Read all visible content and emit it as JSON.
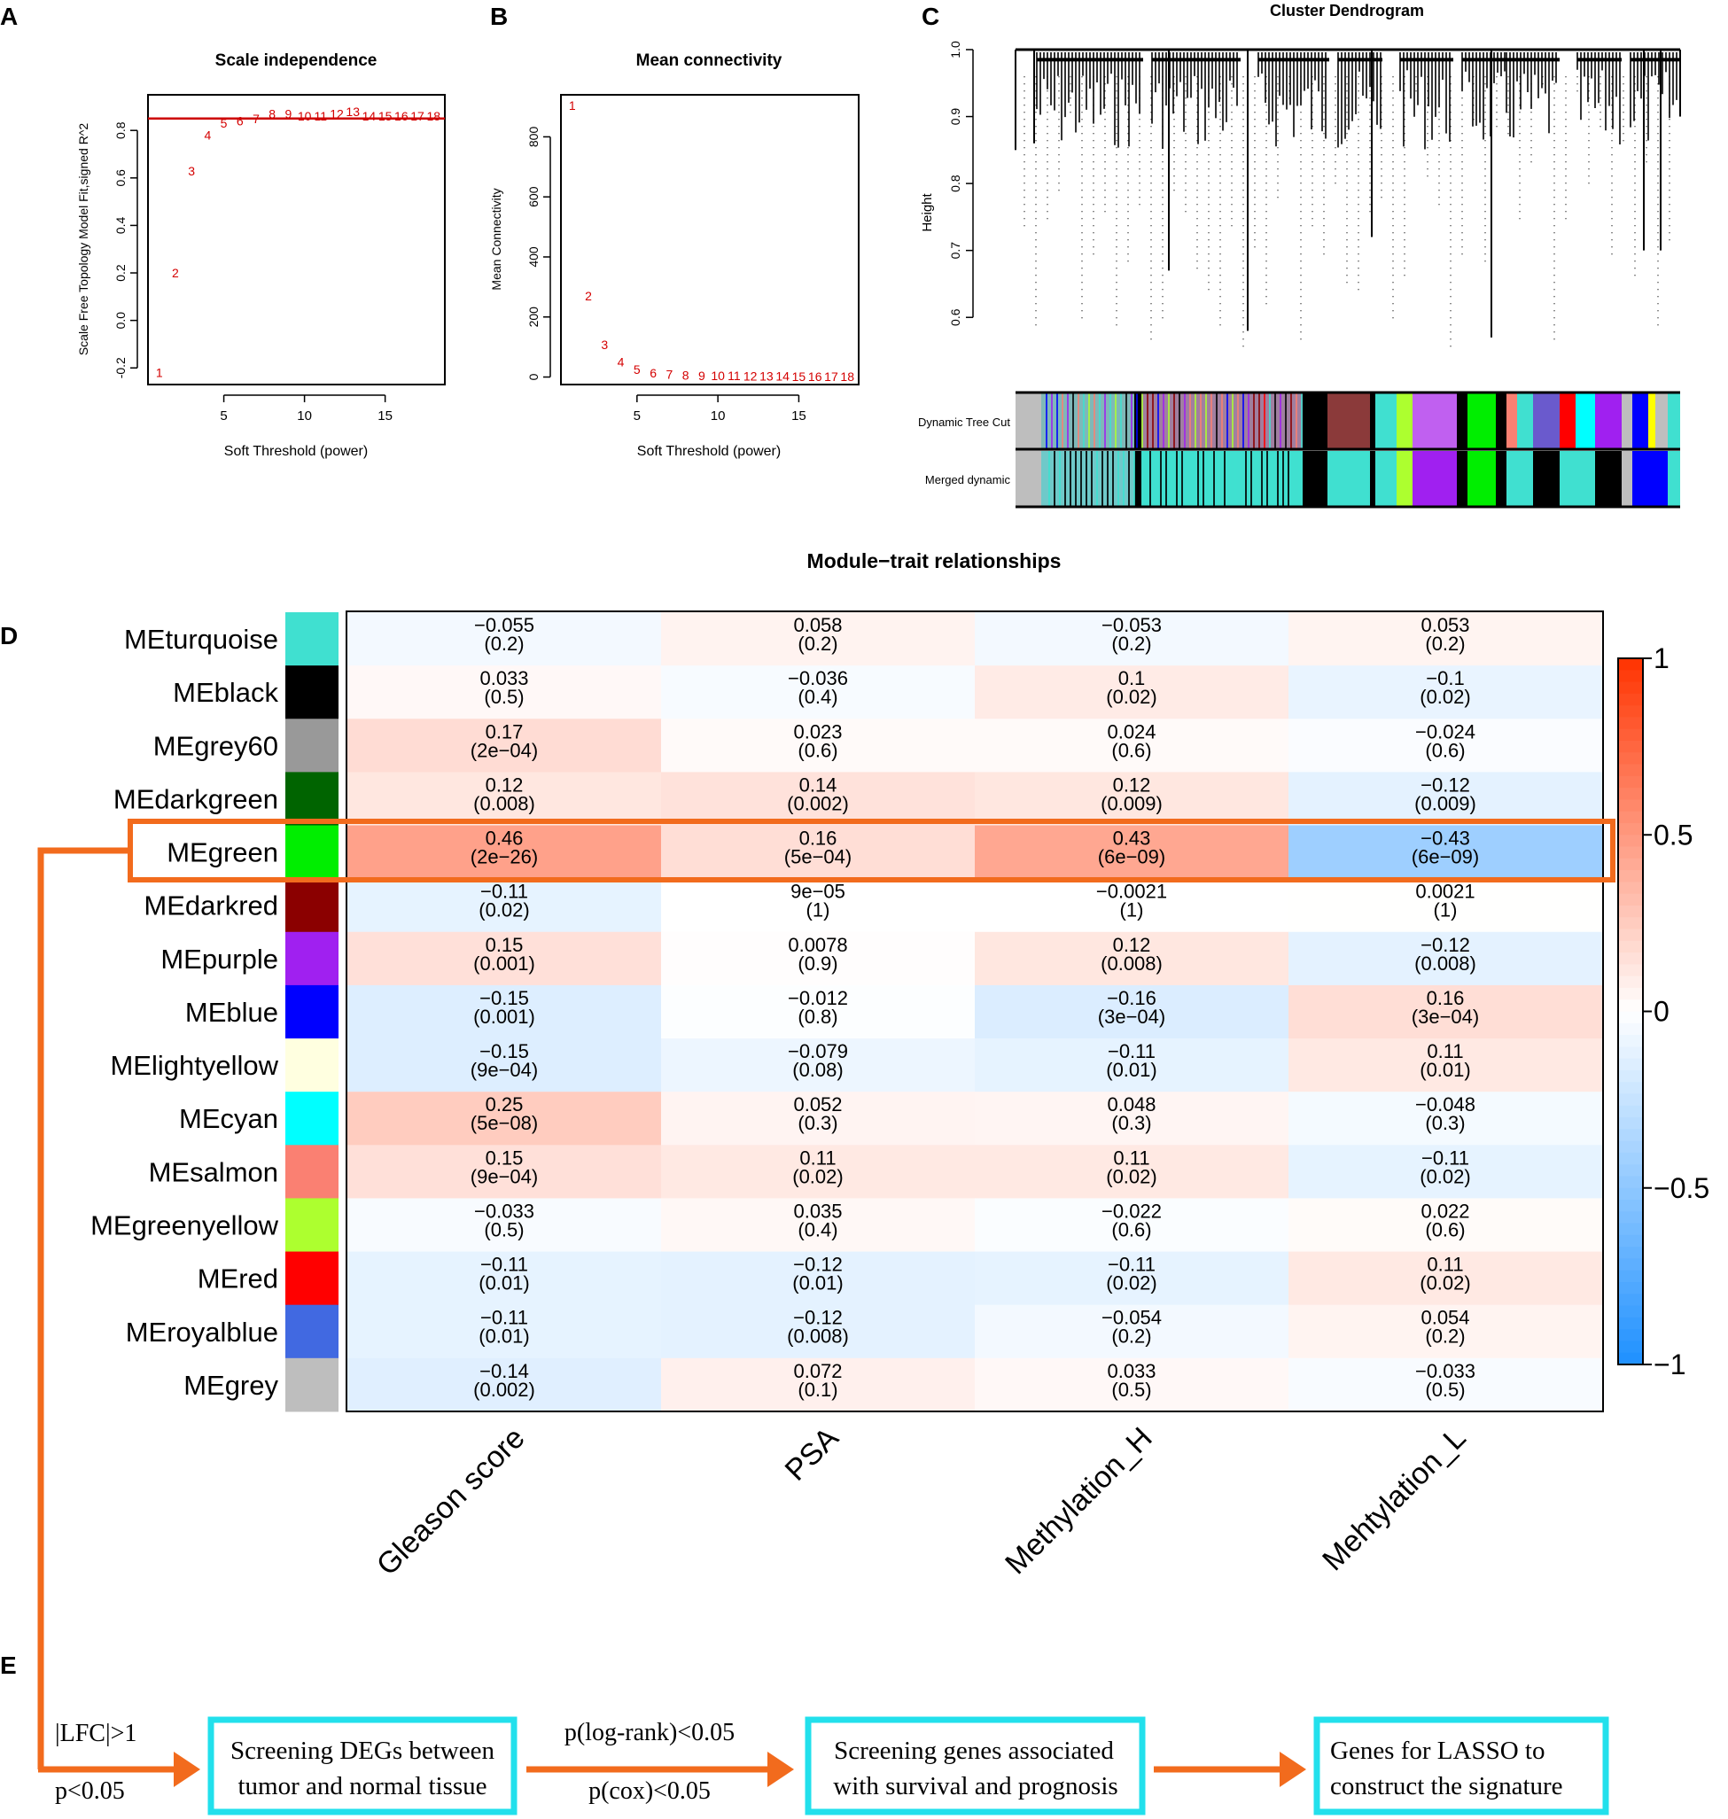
{
  "panels": {
    "a": {
      "letter": "A",
      "title": "Scale independence",
      "xlabel": "Soft Threshold (power)",
      "ylabel": "Scale Free Topology Model Fit,signed R^2",
      "xticks": [
        "5",
        "10",
        "15"
      ],
      "yticks": [
        "-0.2",
        "0.0",
        "0.2",
        "0.4",
        "0.6",
        "0.8"
      ]
    },
    "b": {
      "letter": "B",
      "title": "Mean connectivity",
      "xlabel": "Soft Threshold (power)",
      "ylabel": "Mean Connectivity",
      "xticks": [
        "5",
        "10",
        "15"
      ],
      "yticks": [
        "0",
        "200",
        "400",
        "600",
        "800"
      ]
    },
    "c": {
      "letter": "C",
      "title": "Cluster Dendrogram",
      "ylabel": "Height",
      "yticks": [
        "0.6",
        "0.7",
        "0.8",
        "0.9",
        "1.0"
      ],
      "row1": "Dynamic Tree Cut",
      "row2": "Merged dynamic"
    },
    "d": {
      "letter": "D",
      "title": "Module−trait relationships"
    },
    "e": {
      "letter": "E"
    }
  },
  "chart_data": [
    {
      "type": "scatter",
      "title": "Scale independence",
      "xlabel": "Soft Threshold (power)",
      "ylabel": "Scale Free Topology Model Fit,signed R^2",
      "x": [
        1,
        2,
        3,
        4,
        5,
        6,
        7,
        8,
        9,
        10,
        11,
        12,
        13,
        14,
        15,
        16,
        17,
        18
      ],
      "y": [
        -0.22,
        0.2,
        0.63,
        0.78,
        0.83,
        0.84,
        0.85,
        0.87,
        0.87,
        0.86,
        0.86,
        0.87,
        0.88,
        0.86,
        0.86,
        0.86,
        0.86,
        0.86
      ],
      "xlim": [
        0.3,
        18.7
      ],
      "ylim": [
        -0.27,
        0.95
      ],
      "threshold_line": 0.85,
      "line_color": "#cc0000"
    },
    {
      "type": "scatter",
      "title": "Mean connectivity",
      "xlabel": "Soft Threshold (power)",
      "ylabel": "Mean Connectivity",
      "x": [
        1,
        2,
        3,
        4,
        5,
        6,
        7,
        8,
        9,
        10,
        11,
        12,
        13,
        14,
        15,
        16,
        17,
        18
      ],
      "y": [
        905,
        270,
        108,
        50,
        25,
        14,
        9,
        6,
        5,
        4,
        4,
        3,
        3,
        3,
        2,
        2,
        2,
        2
      ],
      "xlim": [
        0.3,
        18.7
      ],
      "ylim": [
        -25,
        940
      ]
    },
    {
      "type": "heatmap",
      "title": "Module−trait relationships",
      "rows": [
        "MEturquoise",
        "MEblack",
        "MEgrey60",
        "MEdarkgreen",
        "MEgreen",
        "MEdarkred",
        "MEpurple",
        "MEblue",
        "MElightyellow",
        "MEcyan",
        "MEsalmon",
        "MEgreenyellow",
        "MEred",
        "MEroyalblue",
        "MEgrey"
      ],
      "row_colors": [
        "#40e0d0",
        "#000000",
        "#999999",
        "#006400",
        "#00ee00",
        "#8b0000",
        "#a020f0",
        "#0000ff",
        "#ffffe0",
        "#00ffff",
        "#fa8072",
        "#adff2f",
        "#ff0000",
        "#4169e1",
        "#bebebe"
      ],
      "columns": [
        "Gleason score",
        "PSA",
        "Methylation_H",
        "Mehtylation_L"
      ],
      "values": [
        [
          -0.055,
          0.058,
          -0.053,
          0.053
        ],
        [
          0.033,
          -0.036,
          0.1,
          -0.1
        ],
        [
          0.17,
          0.023,
          0.024,
          -0.024
        ],
        [
          0.12,
          0.14,
          0.12,
          -0.12
        ],
        [
          0.46,
          0.16,
          0.43,
          -0.43
        ],
        [
          -0.11,
          9e-05,
          -0.0021,
          0.0021
        ],
        [
          0.15,
          0.0078,
          0.12,
          -0.12
        ],
        [
          -0.15,
          -0.012,
          -0.16,
          0.16
        ],
        [
          -0.15,
          -0.079,
          -0.11,
          0.11
        ],
        [
          0.25,
          0.052,
          0.048,
          -0.048
        ],
        [
          0.15,
          0.11,
          0.11,
          -0.11
        ],
        [
          -0.033,
          0.035,
          -0.022,
          0.022
        ],
        [
          -0.11,
          -0.12,
          -0.11,
          0.11
        ],
        [
          -0.11,
          -0.12,
          -0.054,
          0.054
        ],
        [
          -0.14,
          0.072,
          0.033,
          -0.033
        ]
      ],
      "value_labels": [
        [
          "−0.055",
          "0.058",
          "−0.053",
          "0.053"
        ],
        [
          "0.033",
          "−0.036",
          "0.1",
          "−0.1"
        ],
        [
          "0.17",
          "0.023",
          "0.024",
          "−0.024"
        ],
        [
          "0.12",
          "0.14",
          "0.12",
          "−0.12"
        ],
        [
          "0.46",
          "0.16",
          "0.43",
          "−0.43"
        ],
        [
          "−0.11",
          "9e−05",
          "−0.0021",
          "0.0021"
        ],
        [
          "0.15",
          "0.0078",
          "0.12",
          "−0.12"
        ],
        [
          "−0.15",
          "−0.012",
          "−0.16",
          "0.16"
        ],
        [
          "−0.15",
          "−0.079",
          "−0.11",
          "0.11"
        ],
        [
          "0.25",
          "0.052",
          "0.048",
          "−0.048"
        ],
        [
          "0.15",
          "0.11",
          "0.11",
          "−0.11"
        ],
        [
          "−0.033",
          "0.035",
          "−0.022",
          "0.022"
        ],
        [
          "−0.11",
          "−0.12",
          "−0.11",
          "0.11"
        ],
        [
          "−0.11",
          "−0.12",
          "−0.054",
          "0.054"
        ],
        [
          "−0.14",
          "0.072",
          "0.033",
          "−0.033"
        ]
      ],
      "p_labels": [
        [
          "(0.2)",
          "(0.2)",
          "(0.2)",
          "(0.2)"
        ],
        [
          "(0.5)",
          "(0.4)",
          "(0.02)",
          "(0.02)"
        ],
        [
          "(2e−04)",
          "(0.6)",
          "(0.6)",
          "(0.6)"
        ],
        [
          "(0.008)",
          "(0.002)",
          "(0.009)",
          "(0.009)"
        ],
        [
          "(2e−26)",
          "(5e−04)",
          "(6e−09)",
          "(6e−09)"
        ],
        [
          "(0.02)",
          "(1)",
          "(1)",
          "(1)"
        ],
        [
          "(0.001)",
          "(0.9)",
          "(0.008)",
          "(0.008)"
        ],
        [
          "(0.001)",
          "(0.8)",
          "(3e−04)",
          "(3e−04)"
        ],
        [
          "(9e−04)",
          "(0.08)",
          "(0.01)",
          "(0.01)"
        ],
        [
          "(5e−08)",
          "(0.3)",
          "(0.3)",
          "(0.3)"
        ],
        [
          "(9e−04)",
          "(0.02)",
          "(0.02)",
          "(0.02)"
        ],
        [
          "(0.5)",
          "(0.4)",
          "(0.6)",
          "(0.6)"
        ],
        [
          "(0.01)",
          "(0.01)",
          "(0.02)",
          "(0.02)"
        ],
        [
          "(0.01)",
          "(0.008)",
          "(0.2)",
          "(0.2)"
        ],
        [
          "(0.002)",
          "(0.1)",
          "(0.5)",
          "(0.5)"
        ]
      ],
      "highlight_row": "MEgreen",
      "color_scale": {
        "min": -1,
        "max": 1,
        "low": "#1e90ff",
        "mid": "#ffffff",
        "high": "#ff3300"
      },
      "colorbar_ticks": [
        "1",
        "0.5",
        "0",
        "−0.5",
        "−1"
      ],
      "colorbar_values": [
        1,
        0.5,
        0,
        -0.5,
        -1
      ]
    }
  ],
  "flow": {
    "arrow_color": "#f26b1d",
    "box_color": "#22e0ec",
    "cond1_top": "|LFC|>1",
    "cond1_bottom": "p<0.05",
    "box1": [
      "Screening DEGs between",
      "tumor and normal tissue"
    ],
    "cond2_top": "p(log-rank)<0.05",
    "cond2_bottom": "p(cox)<0.05",
    "box2": [
      "Screening genes associated",
      "with survival and prognosis"
    ],
    "box3": [
      "Genes for LASSO to",
      "construct the signature"
    ]
  }
}
